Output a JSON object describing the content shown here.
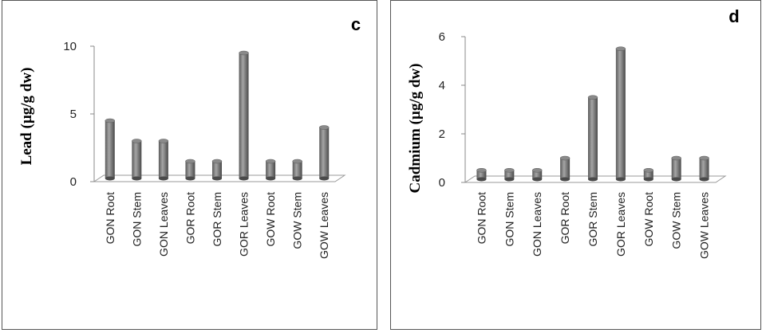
{
  "chart_data": [
    {
      "type": "bar",
      "panel_letter": "c",
      "ylabel": "Lead (µg/g dw)",
      "xlabel": "",
      "categories": [
        "GON Root",
        "GON Stem",
        "GON Leaves",
        "GOR Root",
        "GOR Stem",
        "GOR Leaves",
        "GOW Root",
        "GOW Stem",
        "GOW Leaves"
      ],
      "values": [
        4.5,
        3.0,
        3.0,
        1.5,
        1.5,
        9.5,
        1.5,
        1.5,
        4.0
      ],
      "ylim": [
        0,
        10
      ],
      "yticks": [
        0,
        5,
        10
      ],
      "grid": false,
      "bar_color": "#7f7f7f"
    },
    {
      "type": "bar",
      "panel_letter": "d",
      "ylabel": "Cadmium (µg/g dw)",
      "xlabel": "",
      "categories": [
        "GON Root",
        "GON Stem",
        "GON Leaves",
        "GOR Root",
        "GOR Stem",
        "GOR Leaves",
        "GOW Root",
        "GOW Stem",
        "GOW Leaves"
      ],
      "values": [
        0.5,
        0.5,
        0.5,
        1.0,
        3.5,
        5.5,
        0.5,
        1.0,
        1.0
      ],
      "ylim": [
        0,
        6
      ],
      "yticks": [
        0,
        2,
        4,
        6
      ],
      "grid": false,
      "bar_color": "#7f7f7f"
    }
  ]
}
